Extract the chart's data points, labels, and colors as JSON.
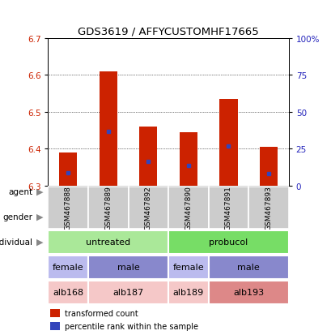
{
  "title": "GDS3619 / AFFYCUSTOMHF17665",
  "samples": [
    "GSM467888",
    "GSM467889",
    "GSM467892",
    "GSM467890",
    "GSM467891",
    "GSM467893"
  ],
  "bar_bottoms": [
    6.3,
    6.3,
    6.3,
    6.3,
    6.3,
    6.3
  ],
  "bar_tops": [
    6.39,
    6.61,
    6.46,
    6.445,
    6.535,
    6.405
  ],
  "blue_positions": [
    6.335,
    6.447,
    6.365,
    6.355,
    6.407,
    6.333
  ],
  "ylim": [
    6.3,
    6.7
  ],
  "y_ticks_left": [
    6.3,
    6.4,
    6.5,
    6.6,
    6.7
  ],
  "y_ticks_right_vals": [
    0,
    25,
    50,
    75,
    100
  ],
  "y_ticks_right_pos": [
    6.3,
    6.4,
    6.5,
    6.6,
    6.7
  ],
  "bar_color": "#cc2200",
  "blue_color": "#3344bb",
  "agent_info": [
    {
      "label": "untreated",
      "start": 0,
      "end": 2,
      "color": "#aae899"
    },
    {
      "label": "probucol",
      "start": 3,
      "end": 5,
      "color": "#77dd66"
    }
  ],
  "gender_spans": [
    {
      "label": "female",
      "start": 0,
      "end": 0,
      "color": "#bbbbee"
    },
    {
      "label": "male",
      "start": 1,
      "end": 2,
      "color": "#8888cc"
    },
    {
      "label": "female",
      "start": 3,
      "end": 3,
      "color": "#bbbbee"
    },
    {
      "label": "male",
      "start": 4,
      "end": 5,
      "color": "#8888cc"
    }
  ],
  "individual_spans": [
    {
      "label": "alb168",
      "start": 0,
      "end": 0,
      "color": "#f5c8c8"
    },
    {
      "label": "alb187",
      "start": 1,
      "end": 2,
      "color": "#f5c8c8"
    },
    {
      "label": "alb189",
      "start": 3,
      "end": 3,
      "color": "#f5c8c8"
    },
    {
      "label": "alb193",
      "start": 4,
      "end": 5,
      "color": "#dd8888"
    }
  ],
  "legend_items": [
    {
      "label": "transformed count",
      "color": "#cc2200"
    },
    {
      "label": "percentile rank within the sample",
      "color": "#3344bb"
    }
  ],
  "row_labels": [
    "agent",
    "gender",
    "individual"
  ],
  "background_color": "#ffffff",
  "sample_box_color": "#cccccc",
  "grid_lines": [
    6.4,
    6.5,
    6.6
  ]
}
